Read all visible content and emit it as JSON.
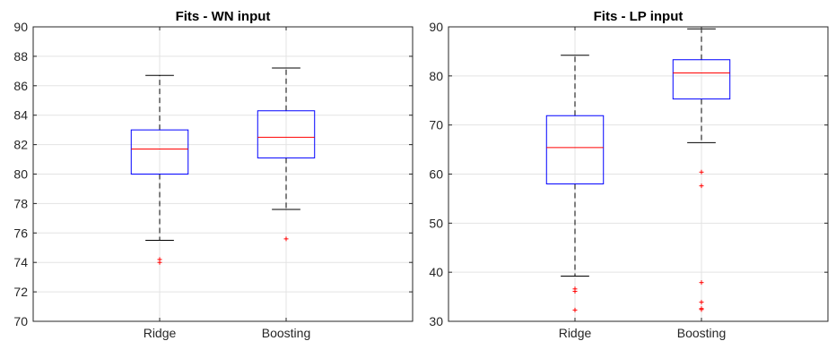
{
  "chart_data": [
    {
      "type": "box",
      "title": "Fits - WN input",
      "xlabel": "",
      "ylabel": "",
      "categories": [
        "Ridge",
        "Boosting"
      ],
      "ylim": [
        70,
        90
      ],
      "yticks": [
        70,
        72,
        74,
        76,
        78,
        80,
        82,
        84,
        86,
        88,
        90
      ],
      "grid": true,
      "boxes": [
        {
          "category": "Ridge",
          "whisker_low": 75.5,
          "q1": 80.0,
          "median": 81.7,
          "q3": 83.0,
          "whisker_high": 86.7,
          "outliers": [
            74.2,
            74.0
          ]
        },
        {
          "category": "Boosting",
          "whisker_low": 77.6,
          "q1": 81.1,
          "median": 82.5,
          "q3": 84.3,
          "whisker_high": 87.2,
          "outliers": [
            75.6
          ]
        }
      ],
      "colors": {
        "box": "#0000ff",
        "median": "#ff0000",
        "whisker": "#000000",
        "outlier": "#ff0000",
        "grid": "#e3e3e3"
      }
    },
    {
      "type": "box",
      "title": "Fits - LP input",
      "xlabel": "",
      "ylabel": "",
      "categories": [
        "Ridge",
        "Boosting"
      ],
      "ylim": [
        30,
        90
      ],
      "yticks": [
        30,
        40,
        50,
        60,
        70,
        80,
        90
      ],
      "grid": true,
      "boxes": [
        {
          "category": "Ridge",
          "whisker_low": 39.2,
          "q1": 58.0,
          "median": 65.4,
          "q3": 71.9,
          "whisker_high": 84.2,
          "outliers": [
            36.6,
            36.1,
            32.3
          ]
        },
        {
          "category": "Boosting",
          "whisker_low": 66.4,
          "q1": 75.3,
          "median": 80.6,
          "q3": 83.3,
          "whisker_high": 89.6,
          "outliers": [
            60.4,
            57.6,
            37.9,
            33.9,
            32.6,
            32.4
          ]
        }
      ],
      "colors": {
        "box": "#0000ff",
        "median": "#ff0000",
        "whisker": "#000000",
        "outlier": "#ff0000",
        "grid": "#e3e3e3"
      }
    }
  ]
}
